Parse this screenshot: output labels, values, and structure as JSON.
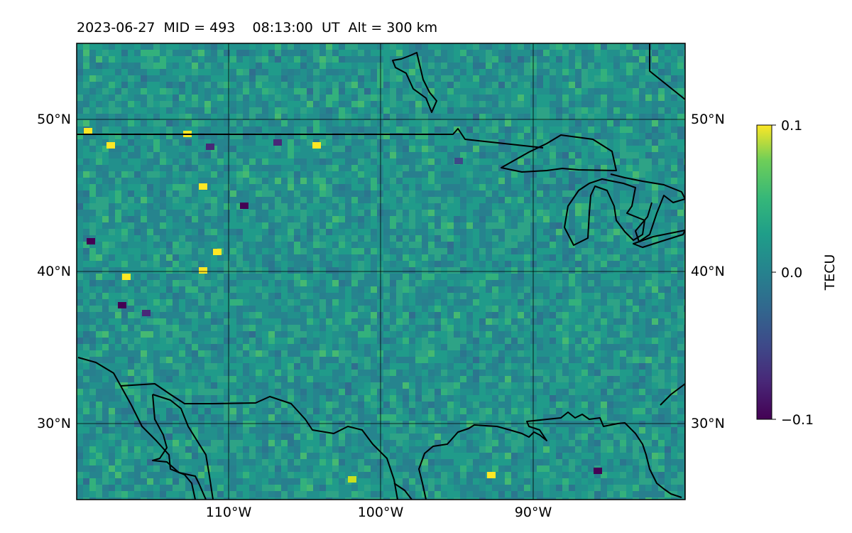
{
  "title": "2023-06-27  MID = 493    08:13:00  UT  Alt = 300 km",
  "map": {
    "lon_range": [
      -120,
      -80
    ],
    "lat_range": [
      25,
      55
    ],
    "lat_labels": [
      "50°N",
      "40°N",
      "30°N"
    ],
    "lon_labels": [
      "110°W",
      "100°W",
      "90°W"
    ],
    "lat_values": [
      50,
      40,
      30
    ],
    "lon_values": [
      -110,
      -100,
      -90
    ],
    "grid": true
  },
  "colorbar": {
    "label": "TECU",
    "colormap": "viridis",
    "range": [
      -0.1,
      0.1
    ],
    "tick_labels": [
      "0.1",
      "0.0",
      "−0.1"
    ],
    "tick_values": [
      0.1,
      0.0,
      -0.1
    ]
  },
  "colors": {
    "background_field": "#2a8a8a",
    "coastline": "#000000",
    "grid": "#000000"
  }
}
